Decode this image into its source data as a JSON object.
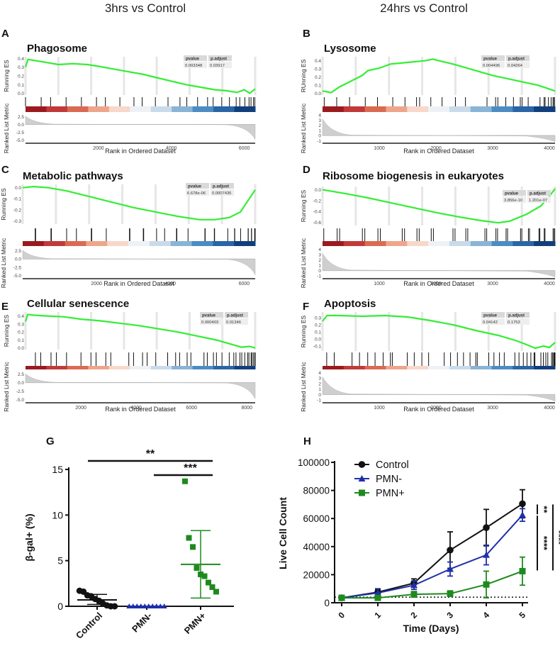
{
  "column_titles": [
    "3hrs vs Control",
    "24hrs vs Control"
  ],
  "gsea_common": {
    "running_es_label": "Running ES",
    "running_es_label_alt": "RUnning ES",
    "ranked_metric_label": "Ranked List Metric",
    "x_label": "Rank in Ordered Dataset",
    "pvalue_header": "pvalue",
    "padjust_header": "p.adjust",
    "es_color": "#33ee33"
  },
  "chart_data": [
    {
      "type": "line",
      "panel": "A",
      "title": "Phagosome",
      "pvalue": "0.003348",
      "padjust": "0.03917",
      "x_max": 6300,
      "x_ticks": [
        "2000",
        "4000",
        "6000"
      ],
      "x_tick_values": [
        2000,
        4000,
        6000
      ],
      "y_ticks": [
        "0.4",
        "0.3",
        "0.2",
        "0.1",
        "0.0"
      ],
      "y_tick_values": [
        0.4,
        0.3,
        0.2,
        0.1,
        0.0
      ],
      "ylim": [
        -0.02,
        0.42
      ],
      "metric_ticks": [
        "2.5",
        "0.0",
        "-2.5",
        "-5.0"
      ],
      "metric_tick_values": [
        2.5,
        0.0,
        -2.5,
        -5.0
      ],
      "metric_lim": [
        -6,
        3.5
      ],
      "es_x": [
        0,
        70,
        200,
        500,
        900,
        1300,
        1700,
        2000,
        2400,
        2800,
        3200,
        3600,
        4000,
        4400,
        4800,
        5200,
        5500,
        5800,
        6000,
        6150,
        6300
      ],
      "es_y": [
        0.3,
        0.39,
        0.38,
        0.36,
        0.33,
        0.34,
        0.33,
        0.31,
        0.28,
        0.25,
        0.22,
        0.18,
        0.14,
        0.1,
        0.07,
        0.04,
        0.03,
        0.01,
        0.04,
        0.0,
        0.05
      ]
    },
    {
      "type": "line",
      "panel": "B",
      "title": "Lysosome",
      "pvalue": "0.004496",
      "padjust": "0.04264",
      "x_max": 4100,
      "x_ticks": [
        "1000",
        "2000",
        "3000",
        "4000"
      ],
      "x_tick_values": [
        1000,
        2000,
        3000,
        4000
      ],
      "y_ticks": [
        "0.4",
        "0.3",
        "0.2",
        "0.1",
        "0.0"
      ],
      "y_tick_values": [
        0.4,
        0.3,
        0.2,
        0.1,
        0.0
      ],
      "ylim": [
        -0.02,
        0.45
      ],
      "metric_ticks": [
        "4",
        "3",
        "2",
        "1",
        "0",
        "-1"
      ],
      "metric_tick_values": [
        4,
        3,
        2,
        1,
        0,
        -1
      ],
      "metric_lim": [
        -1.5,
        4.3
      ],
      "es_x": [
        0,
        150,
        300,
        500,
        700,
        800,
        1000,
        1200,
        1500,
        1800,
        1950,
        2000,
        2300,
        2600,
        3000,
        3400,
        3800,
        4100
      ],
      "es_y": [
        0.03,
        0.01,
        0.08,
        0.15,
        0.22,
        0.28,
        0.31,
        0.36,
        0.38,
        0.4,
        0.42,
        0.41,
        0.36,
        0.3,
        0.22,
        0.16,
        0.1,
        0.03
      ]
    },
    {
      "type": "line",
      "panel": "C",
      "title": "Metabolic pathways",
      "pvalue": "6.678e-06",
      "padjust": "0.0007435",
      "x_max": 6300,
      "x_ticks": [
        "2000",
        "4000",
        "6000"
      ],
      "x_tick_values": [
        2000,
        4000,
        6000
      ],
      "y_ticks": [
        "0.0",
        "-0.1",
        "-0.2",
        "-0.3"
      ],
      "y_tick_values": [
        0.0,
        -0.1,
        -0.2,
        -0.3
      ],
      "ylim": [
        -0.33,
        0.03
      ],
      "metric_ticks": [
        "2.5",
        "0.0",
        "-2.5",
        "-5.0"
      ],
      "metric_tick_values": [
        2.5,
        0.0,
        -2.5,
        -5.0
      ],
      "metric_lim": [
        -6,
        3.5
      ],
      "es_x": [
        0,
        300,
        700,
        1200,
        1800,
        2400,
        3000,
        3600,
        4200,
        4800,
        5200,
        5600,
        5900,
        6100,
        6300
      ],
      "es_y": [
        0.0,
        0.01,
        0.0,
        -0.03,
        -0.08,
        -0.13,
        -0.18,
        -0.22,
        -0.26,
        -0.29,
        -0.29,
        -0.27,
        -0.22,
        -0.12,
        -0.02
      ]
    },
    {
      "type": "line",
      "panel": "D",
      "title": "Ribosome biogenesis in eukaryotes",
      "pvalue": "3.856e-10",
      "padjust": "1.201e-07",
      "x_max": 4100,
      "x_ticks": [
        "1000",
        "2000",
        "3000",
        "4000"
      ],
      "x_tick_values": [
        1000,
        2000,
        3000,
        4000
      ],
      "y_ticks": [
        "0.0",
        "-0.2",
        "-0.4",
        "-0.6"
      ],
      "y_tick_values": [
        0.0,
        -0.2,
        -0.4,
        -0.6
      ],
      "ylim": [
        -0.66,
        0.06
      ],
      "metric_ticks": [
        "4",
        "3",
        "2",
        "1",
        "0",
        "-1"
      ],
      "metric_tick_values": [
        4,
        3,
        2,
        1,
        0,
        -1
      ],
      "metric_lim": [
        -1.5,
        4.3
      ],
      "es_x": [
        0,
        400,
        800,
        1200,
        1600,
        2000,
        2400,
        2800,
        3100,
        3300,
        3600,
        3850,
        4000,
        4100
      ],
      "es_y": [
        0.0,
        -0.07,
        -0.15,
        -0.24,
        -0.33,
        -0.42,
        -0.5,
        -0.57,
        -0.61,
        -0.58,
        -0.45,
        -0.3,
        -0.12,
        0.02
      ]
    },
    {
      "type": "line",
      "panel": "E",
      "title": "Cellular senescence",
      "pvalue": "0.000403",
      "padjust": "0.01346",
      "x_max": 8300,
      "x_ticks": [
        "2000",
        "4000",
        "6000",
        "8000"
      ],
      "x_tick_values": [
        2000,
        4000,
        6000,
        8000
      ],
      "y_ticks": [
        "0.4",
        "0.3",
        "0.2",
        "0.1",
        "0.0"
      ],
      "y_tick_values": [
        0.4,
        0.3,
        0.2,
        0.1,
        0.0
      ],
      "ylim": [
        -0.02,
        0.45
      ],
      "metric_ticks": [
        "2.5",
        "0.0",
        "-2.5",
        "-5.0"
      ],
      "metric_tick_values": [
        2.5,
        0.0,
        -2.5,
        -5.0
      ],
      "metric_lim": [
        -6,
        3.5
      ],
      "es_x": [
        0,
        80,
        300,
        800,
        1400,
        2000,
        2700,
        3400,
        4100,
        4800,
        5500,
        6200,
        6900,
        7500,
        7800,
        8100,
        8300
      ],
      "es_y": [
        0.33,
        0.42,
        0.41,
        0.4,
        0.39,
        0.36,
        0.34,
        0.31,
        0.28,
        0.24,
        0.2,
        0.15,
        0.1,
        0.04,
        0.01,
        0.02,
        0.0
      ]
    },
    {
      "type": "line",
      "panel": "F",
      "title": "Apoptosis",
      "pvalue": "0.04142",
      "padjust": "0.1753",
      "x_max": 4100,
      "x_ticks": [
        "1000",
        "2000",
        "3000",
        "4000"
      ],
      "x_tick_values": [
        1000,
        2000,
        3000,
        4000
      ],
      "y_ticks": [
        "0.3",
        "0.2",
        "0.1",
        "0.0",
        "-0.1"
      ],
      "y_tick_values": [
        0.3,
        0.2,
        0.1,
        0.0,
        -0.1
      ],
      "ylim": [
        -0.17,
        0.38
      ],
      "metric_ticks": [
        "4",
        "3",
        "2",
        "1",
        "0",
        "-1"
      ],
      "metric_tick_values": [
        4,
        3,
        2,
        1,
        0,
        -1
      ],
      "metric_lim": [
        -1.5,
        4.3
      ],
      "es_x": [
        0,
        80,
        300,
        700,
        1100,
        1500,
        1900,
        2300,
        2700,
        3100,
        3400,
        3600,
        3750,
        3900,
        4000,
        4100
      ],
      "es_y": [
        0.25,
        0.33,
        0.33,
        0.32,
        0.33,
        0.31,
        0.26,
        0.2,
        0.12,
        0.05,
        -0.02,
        -0.08,
        -0.13,
        -0.1,
        -0.12,
        -0.05
      ]
    },
    {
      "type": "scatter",
      "panel": "G",
      "ylabel": "β-gal+ (%)",
      "ylim": [
        0,
        15
      ],
      "y_ticks": [
        "0",
        "5",
        "10",
        "15"
      ],
      "y_tick_values": [
        0,
        5,
        10,
        15
      ],
      "categories": [
        "Control",
        "PMN-",
        "PMN+"
      ],
      "colors": [
        "#111111",
        "#1f2fa8",
        "#1e8a1e"
      ],
      "markers": [
        "circle",
        "triangle",
        "square"
      ],
      "points": [
        [
          1.7,
          1.6,
          1.2,
          1.1,
          0.8,
          0.6,
          0.3,
          0.1,
          0.0,
          0.0
        ],
        [
          0.0,
          0.0,
          0.0,
          0.0,
          0.0,
          0.0,
          0.0,
          0.0,
          0.0,
          0.0
        ],
        [
          13.7,
          7.5,
          6.5,
          4.2,
          3.5,
          3.3,
          2.6,
          2.1,
          1.6
        ]
      ],
      "mean": [
        0.7,
        0.0,
        4.6
      ],
      "sd_low": [
        0.2,
        0.0,
        0.9
      ],
      "sd_high": [
        1.3,
        0.0,
        8.3
      ],
      "significance": [
        {
          "from": "Control",
          "to": "PMN+",
          "label": "**"
        },
        {
          "from": "PMN-",
          "to": "PMN+",
          "label": "***"
        }
      ]
    },
    {
      "type": "line",
      "panel": "H",
      "xlabel": "Time (Days)",
      "ylabel": "Live Cell Count",
      "x": [
        0,
        1,
        2,
        3,
        4,
        5
      ],
      "x_ticks": [
        "0",
        "1",
        "2",
        "3",
        "4",
        "5"
      ],
      "ylim": [
        0,
        100000
      ],
      "y_ticks": [
        "0",
        "20000",
        "40000",
        "60000",
        "80000",
        "100000"
      ],
      "y_tick_values": [
        0,
        20000,
        40000,
        60000,
        80000,
        100000
      ],
      "baseline": 4000,
      "series": [
        {
          "name": "Control",
          "color": "#111111",
          "marker": "circle",
          "values": [
            3500,
            7500,
            14000,
            37500,
            53500,
            70500
          ],
          "err": [
            800,
            2000,
            3000,
            13000,
            13000,
            10000
          ]
        },
        {
          "name": "PMN-",
          "color": "#1f2fa8",
          "marker": "triangle",
          "values": [
            3500,
            7000,
            12500,
            24000,
            34000,
            62500
          ],
          "err": [
            800,
            3000,
            3000,
            5000,
            7000,
            4500
          ]
        },
        {
          "name": "PMN+",
          "color": "#1e8a1e",
          "marker": "square",
          "values": [
            3500,
            3500,
            6000,
            6500,
            13000,
            22500
          ],
          "err": [
            800,
            1500,
            2000,
            2000,
            9500,
            10000
          ]
        }
      ],
      "significance": [
        {
          "label": "**"
        },
        {
          "label": "****"
        },
        {
          "label": "****"
        }
      ]
    }
  ]
}
